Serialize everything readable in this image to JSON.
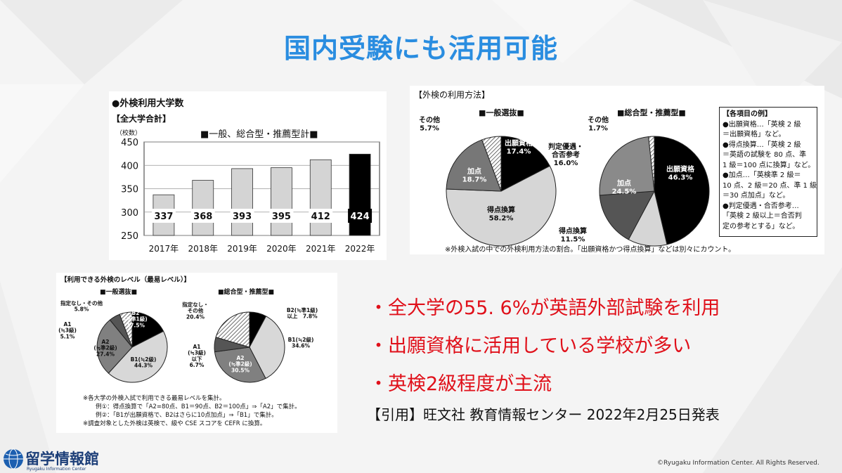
{
  "title": "国内受験にも活用可能",
  "bar_panel": {
    "heading": "●外検利用大学数",
    "subheading": "【全大学合計】",
    "unit": "（校数）",
    "chart_title": "■一般、総合型・推薦型計■"
  },
  "method_panel": {
    "heading": "【外検の利用方法】",
    "left_title": "■一般選抜■",
    "right_title": "■総合型・推薦型■",
    "left_labels": {
      "shutsugan": "出願資格\n17.4%",
      "tokuten": "得点換算\n58.2%",
      "katen": "加点\n18.7%",
      "other": "その他\n5.7%"
    },
    "right_labels": {
      "shutsugan": "出願資格\n46.3%",
      "tokuten": "得点換算\n11.5%",
      "katen": "加点\n24.5%",
      "hantei": "判定優遇・\n合否参考\n16.0%",
      "other": "その他\n1.7%"
    },
    "legend_title": "【各項目の例】",
    "legend_lines": [
      "●出願資格…「英検 2 級",
      "＝出願資格」など。",
      "●得点換算…「英検 2 級",
      "＝英語の試験を 80 点、準",
      "1 級＝100 点に換算」など。",
      "●加点…「英検準 2 級＝",
      "10 点、2 級＝20 点、準 1 級",
      "＝30 点加点」など。",
      "●判定優遇・合否参考…",
      "「英検 2 級以上＝合否判",
      "定の参考とする」など。"
    ],
    "footnote": "※外検入試の中での外検利用方法の割合。「出願資格かつ得点換算」などは別々にカウント。"
  },
  "level_panel": {
    "heading": "【利用できる外検のレベル（最易レベル）】",
    "left_title": "■一般選抜■",
    "right_title": "■総合型・推薦型■",
    "left_labels": {
      "b2": "B2\n(≒準1級)\n17.5%",
      "b1": "B1(≒2級)\n44.3%",
      "a2": "A2\n(≒準2級)\n27.4%",
      "a1": "A1\n(≒3級)\n5.1%",
      "none": "指定なし・その他\n5.8%"
    },
    "right_labels": {
      "b2": "B2(≒準1級)\n以上　7.8%",
      "b1": "B1(≒2級)\n34.6%",
      "a2": "A2\n(≒準2級)\n30.5%",
      "a1": "A1\n(≒3級)\n以下\n6.7%",
      "none": "指定なし・\nその他\n20.4%"
    },
    "notes": [
      "※各大学の外検入試で利用できる最易レベルを集計。",
      "例①：得点換算で「A2=80点、B1＝90点、B2＝100点」⇒「A2」で集計。",
      "例②：「B1が出願資格で、B2はさらに10点加点」⇒「B1」で集計。",
      "※調査対象とした外検は英検で、級や CSE スコアを CEFR に換算。"
    ]
  },
  "bullets": [
    "・全大学の55. 6%が英語外部試験を利用",
    "・出願資格に活用している学校が多い",
    "・英検2級程度が主流"
  ],
  "citation": "【引用】旺文社  教育情報センター  2022年2月25日発表",
  "logo": {
    "name": "留学情報館",
    "sub": "Ryugaku Information Center"
  },
  "copyright": "©Ryugaku Information Center. All Rights Reserved.",
  "colors": {
    "title": "#2a8de0",
    "bullet": "#e0101a",
    "logo": "#1c3e78"
  },
  "chart_data": [
    {
      "type": "bar",
      "title": "■一般、総合型・推薦型計■",
      "categories": [
        "2017年",
        "2018年",
        "2019年",
        "2020年",
        "2021年",
        "2022年"
      ],
      "values": [
        337,
        368,
        393,
        395,
        412,
        424
      ],
      "ylabel": "（校数）",
      "ylim": [
        250,
        450
      ],
      "yticks": [
        250,
        300,
        350,
        400,
        450
      ],
      "grid": true,
      "highlight_last": true
    },
    {
      "type": "pie",
      "title": "■一般選抜■",
      "labels": [
        "出願資格",
        "得点換算",
        "加点",
        "その他"
      ],
      "values": [
        17.4,
        58.2,
        18.7,
        5.7
      ]
    },
    {
      "type": "pie",
      "title": "■総合型・推薦型■",
      "labels": [
        "出願資格",
        "得点換算",
        "判定優遇・合否参考",
        "加点",
        "その他"
      ],
      "values": [
        46.3,
        11.5,
        16.0,
        24.5,
        1.7
      ]
    },
    {
      "type": "pie",
      "title": "■一般選抜■",
      "labels": [
        "B2(≒準1級)",
        "B1(≒2級)",
        "A2(≒準2級)",
        "A1(≒3級)",
        "指定なし・その他"
      ],
      "values": [
        17.5,
        44.3,
        27.4,
        5.1,
        5.8
      ]
    },
    {
      "type": "pie",
      "title": "■総合型・推薦型■",
      "labels": [
        "B2(≒準1級)以上",
        "B1(≒2級)",
        "A2(≒準2級)",
        "A1(≒3級)以下",
        "指定なし・その他"
      ],
      "values": [
        7.8,
        34.6,
        30.5,
        6.7,
        20.4
      ]
    }
  ]
}
